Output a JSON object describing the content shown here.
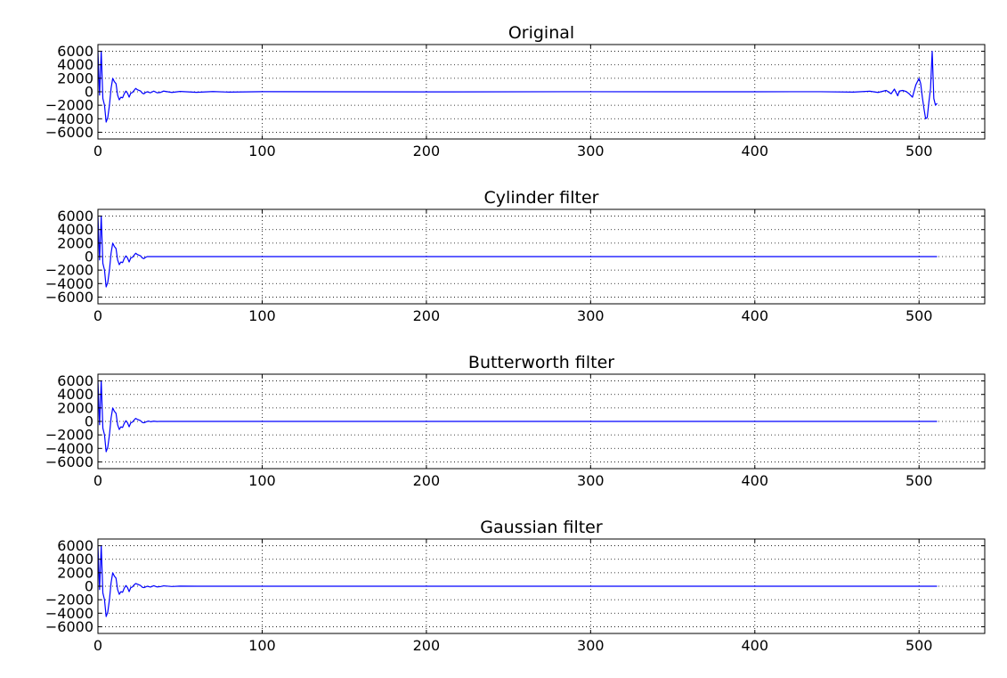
{
  "figure": {
    "background": "#ffffff",
    "line_color": "#0000ff",
    "grid_color": "#000000"
  },
  "chart_data": [
    {
      "type": "line",
      "title": "Original",
      "xlabel": "",
      "ylabel": "",
      "xlim": [
        0,
        540
      ],
      "ylim": [
        -7000,
        7000
      ],
      "xticks": [
        0,
        100,
        200,
        300,
        400,
        500
      ],
      "yticks": [
        6000,
        4000,
        2000,
        0,
        -2000,
        -4000,
        -6000
      ],
      "tick_labels": {
        "x": [
          "0",
          "100",
          "200",
          "300",
          "400",
          "500"
        ],
        "y": [
          "6000",
          "4000",
          "2000",
          "0",
          "−2000",
          "−4000",
          "−6000"
        ]
      },
      "grid": true,
      "series": [
        {
          "color": "#0000ff",
          "x": [
            0,
            1,
            2,
            3,
            4,
            5,
            6,
            7,
            8,
            9,
            10,
            11,
            12,
            13,
            14,
            15,
            16,
            17,
            18,
            19,
            20,
            21,
            22,
            23,
            24,
            25,
            26,
            27,
            28,
            29,
            30,
            32,
            34,
            36,
            38,
            40,
            45,
            50,
            60,
            70,
            80,
            100,
            200,
            300,
            400,
            440,
            460,
            470,
            475,
            480,
            483,
            485,
            487,
            488,
            490,
            492,
            494,
            496,
            498,
            499,
            500,
            501,
            502,
            503,
            504,
            505,
            506,
            507,
            508,
            509,
            510,
            511
          ],
          "y": [
            6000,
            -500,
            6000,
            -1000,
            -2000,
            -4500,
            -3800,
            -2000,
            500,
            2000,
            1500,
            1200,
            -500,
            -1200,
            -800,
            -900,
            -300,
            100,
            -200,
            -800,
            -200,
            -100,
            200,
            500,
            300,
            200,
            100,
            -200,
            -300,
            -100,
            0,
            -150,
            100,
            -150,
            -100,
            100,
            -100,
            50,
            -80,
            30,
            -50,
            20,
            -20,
            10,
            0,
            10,
            -50,
            80,
            -100,
            200,
            -300,
            400,
            -600,
            100,
            200,
            50,
            -300,
            -800,
            1000,
            1500,
            2000,
            1200,
            -800,
            -2500,
            -4000,
            -3800,
            -1500,
            500,
            6000,
            -1000,
            -2000,
            -1700
          ]
        }
      ]
    },
    {
      "type": "line",
      "title": "Cylinder filter",
      "xlabel": "",
      "ylabel": "",
      "xlim": [
        0,
        540
      ],
      "ylim": [
        -7000,
        7000
      ],
      "xticks": [
        0,
        100,
        200,
        300,
        400,
        500
      ],
      "yticks": [
        6000,
        4000,
        2000,
        0,
        -2000,
        -4000,
        -6000
      ],
      "tick_labels": {
        "x": [
          "0",
          "100",
          "200",
          "300",
          "400",
          "500"
        ],
        "y": [
          "6000",
          "4000",
          "2000",
          "0",
          "−2000",
          "−4000",
          "−6000"
        ]
      },
      "grid": true,
      "series": [
        {
          "color": "#0000ff",
          "x": [
            0,
            1,
            2,
            3,
            4,
            5,
            6,
            7,
            8,
            9,
            10,
            11,
            12,
            13,
            14,
            15,
            16,
            17,
            18,
            19,
            20,
            21,
            22,
            23,
            24,
            25,
            26,
            27,
            28,
            29,
            30,
            31,
            32,
            511
          ],
          "y": [
            6000,
            -500,
            6000,
            -1000,
            -2000,
            -4500,
            -3800,
            -2000,
            500,
            2000,
            1500,
            1200,
            -500,
            -1200,
            -800,
            -900,
            -300,
            100,
            -200,
            -800,
            -200,
            -100,
            200,
            500,
            300,
            200,
            100,
            -200,
            -300,
            -100,
            0,
            0,
            0,
            0
          ]
        }
      ]
    },
    {
      "type": "line",
      "title": "Butterworth filter",
      "xlabel": "",
      "ylabel": "",
      "xlim": [
        0,
        540
      ],
      "ylim": [
        -7000,
        7000
      ],
      "xticks": [
        0,
        100,
        200,
        300,
        400,
        500
      ],
      "yticks": [
        6000,
        4000,
        2000,
        0,
        -2000,
        -4000,
        -6000
      ],
      "tick_labels": {
        "x": [
          "0",
          "100",
          "200",
          "300",
          "400",
          "500"
        ],
        "y": [
          "6000",
          "4000",
          "2000",
          "0",
          "−2000",
          "−4000",
          "−6000"
        ]
      },
      "grid": true,
      "series": [
        {
          "color": "#0000ff",
          "x": [
            0,
            1,
            2,
            3,
            4,
            5,
            6,
            7,
            8,
            9,
            10,
            11,
            12,
            13,
            14,
            15,
            16,
            17,
            18,
            19,
            20,
            21,
            22,
            23,
            24,
            25,
            26,
            27,
            28,
            29,
            30,
            31,
            32,
            34,
            36,
            38,
            40,
            511
          ],
          "y": [
            6000,
            -500,
            6000,
            -1000,
            -2000,
            -4500,
            -3800,
            -2000,
            500,
            2000,
            1500,
            1200,
            -500,
            -1200,
            -800,
            -900,
            -300,
            100,
            -200,
            -800,
            -200,
            -100,
            200,
            450,
            300,
            200,
            100,
            -150,
            -200,
            -100,
            0,
            50,
            -50,
            30,
            -20,
            10,
            0,
            0
          ]
        }
      ]
    },
    {
      "type": "line",
      "title": "Gaussian filter",
      "xlabel": "",
      "ylabel": "",
      "xlim": [
        0,
        540
      ],
      "ylim": [
        -7000,
        7000
      ],
      "xticks": [
        0,
        100,
        200,
        300,
        400,
        500
      ],
      "yticks": [
        6000,
        4000,
        2000,
        0,
        -2000,
        -4000,
        -6000
      ],
      "tick_labels": {
        "x": [
          "0",
          "100",
          "200",
          "300",
          "400",
          "500"
        ],
        "y": [
          "6000",
          "4000",
          "2000",
          "0",
          "−2000",
          "−4000",
          "−6000"
        ]
      },
      "grid": true,
      "series": [
        {
          "color": "#0000ff",
          "x": [
            0,
            1,
            2,
            3,
            4,
            5,
            6,
            7,
            8,
            9,
            10,
            11,
            12,
            13,
            14,
            15,
            16,
            17,
            18,
            19,
            20,
            21,
            22,
            23,
            24,
            25,
            26,
            27,
            28,
            29,
            30,
            32,
            34,
            36,
            38,
            40,
            45,
            50,
            60,
            511
          ],
          "y": [
            6000,
            -500,
            6000,
            -1000,
            -2000,
            -4500,
            -3800,
            -2000,
            500,
            2000,
            1500,
            1200,
            -500,
            -1200,
            -800,
            -900,
            -300,
            100,
            -200,
            -800,
            -200,
            -100,
            200,
            400,
            300,
            200,
            100,
            -150,
            -200,
            -100,
            0,
            -120,
            80,
            -100,
            -60,
            60,
            -40,
            20,
            0,
            0
          ]
        }
      ]
    }
  ]
}
